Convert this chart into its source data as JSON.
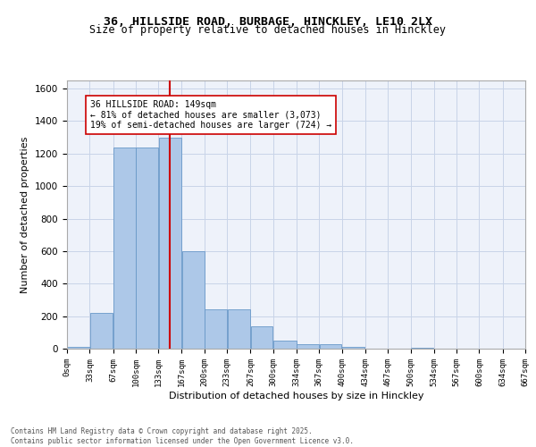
{
  "title_line1": "36, HILLSIDE ROAD, BURBAGE, HINCKLEY, LE10 2LX",
  "title_line2": "Size of property relative to detached houses in Hinckley",
  "xlabel": "Distribution of detached houses by size in Hinckley",
  "ylabel": "Number of detached properties",
  "bar_edges": [
    0,
    33,
    67,
    100,
    133,
    167,
    200,
    233,
    267,
    300,
    334,
    367,
    400,
    434,
    467,
    500,
    534,
    567,
    600,
    634,
    667
  ],
  "bar_heights": [
    10,
    220,
    1240,
    1240,
    1300,
    600,
    240,
    240,
    140,
    50,
    30,
    25,
    10,
    0,
    0,
    5,
    0,
    0,
    0,
    0
  ],
  "bar_color": "#adc8e8",
  "bar_edge_color": "#6898c8",
  "vline_x": 149,
  "vline_color": "#cc0000",
  "annotation_text": "36 HILLSIDE ROAD: 149sqm\n← 81% of detached houses are smaller (3,073)\n19% of semi-detached houses are larger (724) →",
  "annotation_box_color": "#cc0000",
  "ylim": [
    0,
    1650
  ],
  "yticks": [
    0,
    200,
    400,
    600,
    800,
    1000,
    1200,
    1400,
    1600
  ],
  "tick_labels": [
    "0sqm",
    "33sqm",
    "67sqm",
    "100sqm",
    "133sqm",
    "167sqm",
    "200sqm",
    "233sqm",
    "267sqm",
    "300sqm",
    "334sqm",
    "367sqm",
    "400sqm",
    "434sqm",
    "467sqm",
    "500sqm",
    "534sqm",
    "567sqm",
    "600sqm",
    "634sqm",
    "667sqm"
  ],
  "footer_line1": "Contains HM Land Registry data © Crown copyright and database right 2025.",
  "footer_line2": "Contains public sector information licensed under the Open Government Licence v3.0.",
  "bg_color": "#eef2fa",
  "grid_color": "#c8d4e8"
}
